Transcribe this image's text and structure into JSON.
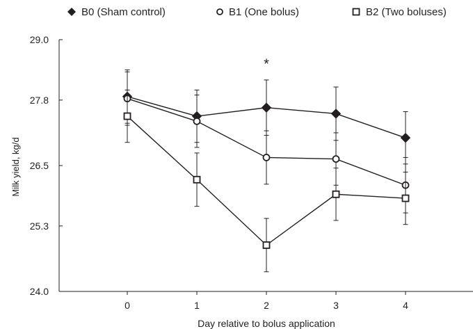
{
  "chart_data": {
    "type": "line",
    "xlabel": "Day relative to bolus application",
    "ylabel": "Milk yield, kg/d",
    "x": [
      0,
      1,
      2,
      3,
      4
    ],
    "xlim": [
      -1,
      5
    ],
    "ylim": [
      24.0,
      29.0
    ],
    "y_ticks": [
      "24.0",
      "25.3",
      "26.5",
      "27.8",
      "29.0"
    ],
    "y_tick_values": [
      24.0,
      25.3,
      26.5,
      27.8,
      29.0
    ],
    "x_ticks": [
      "0",
      "1",
      "2",
      "3",
      "4"
    ],
    "grid": false,
    "legend_position": "top",
    "annotations": [
      {
        "x": 2,
        "y": 28.55,
        "text": "*"
      }
    ],
    "series": [
      {
        "name": "B0 (Sham control)",
        "marker": "filled-diamond",
        "values": [
          27.87,
          27.48,
          27.65,
          27.53,
          27.05
        ],
        "error": [
          0.53,
          0.52,
          0.55,
          0.53,
          0.52
        ]
      },
      {
        "name": "B1 (One bolus)",
        "marker": "open-circle",
        "values": [
          27.83,
          27.38,
          26.66,
          26.63,
          26.11
        ],
        "error": [
          0.53,
          0.52,
          0.53,
          0.52,
          0.55
        ]
      },
      {
        "name": "B2 (Two boluses)",
        "marker": "open-square",
        "values": [
          27.48,
          26.22,
          24.92,
          25.93,
          25.85
        ],
        "error": [
          0.52,
          0.53,
          0.53,
          0.52,
          0.52
        ]
      }
    ],
    "colors": {
      "line": "#231f20",
      "axis": "#231f20",
      "background": "#ffffff"
    }
  }
}
